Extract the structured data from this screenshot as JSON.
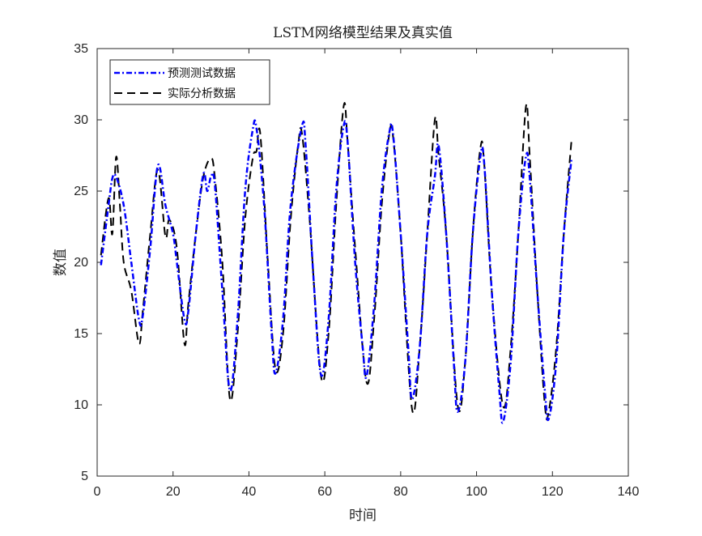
{
  "chart_data": {
    "type": "line",
    "title": "LSTM网络模型结果及真实值",
    "xlabel": "时间",
    "ylabel": "数值",
    "xlim": [
      0,
      140
    ],
    "ylim": [
      5,
      35
    ],
    "xticks": [
      0,
      20,
      40,
      60,
      80,
      100,
      120,
      140
    ],
    "yticks": [
      5,
      10,
      15,
      20,
      25,
      30,
      35
    ],
    "grid": false,
    "legend_position": "top-left",
    "series": [
      {
        "name": "预测测试数据",
        "color": "#0000ff",
        "style": "dash-dot",
        "points": [
          [
            1,
            19.8
          ],
          [
            3,
            24
          ],
          [
            4,
            25.9
          ],
          [
            5,
            26
          ],
          [
            7,
            24
          ],
          [
            9,
            20
          ],
          [
            11,
            16
          ],
          [
            12,
            16.2
          ],
          [
            14,
            21
          ],
          [
            16,
            26.8
          ],
          [
            18,
            24
          ],
          [
            20,
            22
          ],
          [
            21,
            20
          ],
          [
            23,
            16
          ],
          [
            24,
            16.5
          ],
          [
            26,
            22
          ],
          [
            28,
            26.2
          ],
          [
            29,
            25
          ],
          [
            30,
            26
          ],
          [
            31,
            25.5
          ],
          [
            33,
            18
          ],
          [
            35,
            11
          ],
          [
            37,
            16
          ],
          [
            39,
            25
          ],
          [
            41,
            29.3
          ],
          [
            42,
            29.4
          ],
          [
            44,
            24
          ],
          [
            46,
            15
          ],
          [
            47,
            12.2
          ],
          [
            49,
            16
          ],
          [
            51,
            24
          ],
          [
            54,
            29.6
          ],
          [
            55,
            28
          ],
          [
            57,
            19
          ],
          [
            59,
            12.1
          ],
          [
            61,
            16
          ],
          [
            63,
            25
          ],
          [
            65,
            29.6
          ],
          [
            66,
            28.5
          ],
          [
            68,
            20
          ],
          [
            70,
            14
          ],
          [
            71,
            12
          ],
          [
            73,
            17
          ],
          [
            75,
            25
          ],
          [
            77,
            29.1
          ],
          [
            78,
            29
          ],
          [
            80,
            22
          ],
          [
            82,
            14
          ],
          [
            83,
            10.4
          ],
          [
            85,
            14
          ],
          [
            87,
            22
          ],
          [
            89,
            26
          ],
          [
            90,
            28.2
          ],
          [
            92,
            22
          ],
          [
            94,
            13
          ],
          [
            95,
            9.5
          ],
          [
            97,
            13
          ],
          [
            99,
            22
          ],
          [
            101,
            27.4
          ],
          [
            102,
            27
          ],
          [
            104,
            18
          ],
          [
            106,
            11
          ],
          [
            107,
            8.8
          ],
          [
            109,
            13
          ],
          [
            111,
            22
          ],
          [
            113,
            27.4
          ],
          [
            114,
            26
          ],
          [
            116,
            18
          ],
          [
            118,
            11
          ],
          [
            119,
            9
          ],
          [
            121,
            13
          ],
          [
            123,
            22
          ],
          [
            125,
            27.2
          ]
        ]
      },
      {
        "name": "实际分析数据",
        "color": "#000000",
        "style": "dashed",
        "points": [
          [
            1,
            20.5
          ],
          [
            3,
            24.5
          ],
          [
            4,
            22
          ],
          [
            5,
            27.4
          ],
          [
            6,
            24
          ],
          [
            7,
            20
          ],
          [
            9,
            18
          ],
          [
            11,
            14.3
          ],
          [
            12,
            16.5
          ],
          [
            14,
            22
          ],
          [
            16,
            26.5
          ],
          [
            18,
            21.8
          ],
          [
            19,
            23
          ],
          [
            21,
            21
          ],
          [
            23,
            14.3
          ],
          [
            24,
            17
          ],
          [
            26,
            22
          ],
          [
            28,
            26
          ],
          [
            30,
            27.3
          ],
          [
            31,
            26
          ],
          [
            33,
            20
          ],
          [
            35,
            10.4
          ],
          [
            37,
            15
          ],
          [
            39,
            23
          ],
          [
            41,
            27.3
          ],
          [
            42,
            27.8
          ],
          [
            43,
            29
          ],
          [
            45,
            20
          ],
          [
            47,
            12.5
          ],
          [
            49,
            15
          ],
          [
            51,
            23
          ],
          [
            53,
            28.3
          ],
          [
            54,
            29
          ],
          [
            56,
            23
          ],
          [
            59,
            12
          ],
          [
            61,
            15
          ],
          [
            63,
            24
          ],
          [
            65,
            31
          ],
          [
            66,
            28.5
          ],
          [
            68,
            21
          ],
          [
            71,
            11.6
          ],
          [
            73,
            16
          ],
          [
            75,
            24
          ],
          [
            77,
            29
          ],
          [
            78,
            28.8
          ],
          [
            80,
            22
          ],
          [
            83,
            9.7
          ],
          [
            85,
            14
          ],
          [
            87,
            22
          ],
          [
            89,
            30
          ],
          [
            90,
            27.5
          ],
          [
            92,
            22
          ],
          [
            95,
            10
          ],
          [
            97,
            13
          ],
          [
            99,
            22
          ],
          [
            101,
            28
          ],
          [
            102,
            27
          ],
          [
            104,
            18
          ],
          [
            107,
            9.9
          ],
          [
            109,
            14
          ],
          [
            111,
            22
          ],
          [
            113,
            30.9
          ],
          [
            114,
            27.5
          ],
          [
            116,
            18
          ],
          [
            118,
            10
          ],
          [
            119,
            9.5
          ],
          [
            121,
            14
          ],
          [
            123,
            22
          ],
          [
            125,
            28.5
          ]
        ]
      }
    ]
  }
}
